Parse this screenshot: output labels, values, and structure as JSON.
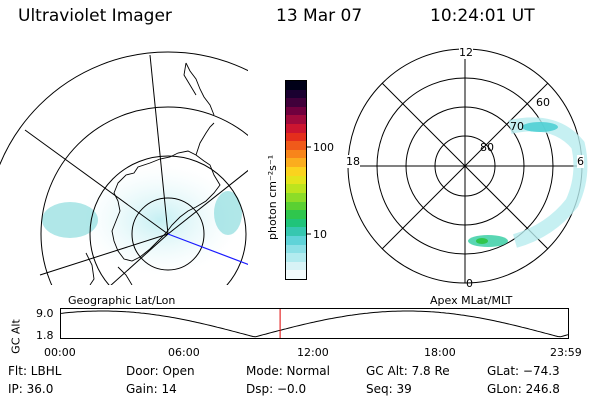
{
  "header": {
    "title": "Ultraviolet Imager",
    "date": "13 Mar 07",
    "time": "10:24:01 UT"
  },
  "left_map": {
    "caption": "Geographic Lat/Lon"
  },
  "colorbar": {
    "unit": "photon cm⁻²s⁻¹",
    "tick_labels": [
      "100",
      "10"
    ],
    "colors": [
      "#f2fbfc",
      "#d8f3f6",
      "#b2ebef",
      "#8ce0e6",
      "#5fd3d8",
      "#36c7b0",
      "#20c47a",
      "#2fc64d",
      "#5ad032",
      "#8cdc28",
      "#bce41e",
      "#e4e41c",
      "#fbd31e",
      "#fbad1e",
      "#f8851a",
      "#f05a1a",
      "#e42e1c",
      "#cc1530",
      "#a00a3c",
      "#70003e",
      "#40003a",
      "#1a0030",
      "#000018"
    ]
  },
  "right_polar": {
    "caption": "Apex MLat/MLT",
    "mlt_labels": {
      "top": "12",
      "left": "18",
      "right": "6",
      "bottom": "0"
    },
    "mlat_labels": [
      "60",
      "70",
      "80"
    ]
  },
  "timeline": {
    "axis_label": "GC Alt",
    "y_labels": [
      "9.0",
      "1.8"
    ],
    "x_labels": [
      "00:00",
      "06:00",
      "12:00",
      "18:00",
      "23:59"
    ],
    "marker_time_hours": 10.4
  },
  "info": {
    "flt": "Flt: LBHL",
    "door": "Door: Open",
    "mode": "Mode: Normal",
    "gcalt": "GC Alt: 7.8 Re",
    "glat": "GLat: −74.3",
    "ip": "IP: 36.0",
    "gain": "Gain: 14",
    "dsp": "Dsp:   −0.0",
    "seq": "Seq: 39",
    "glon": "GLon: 246.8"
  }
}
